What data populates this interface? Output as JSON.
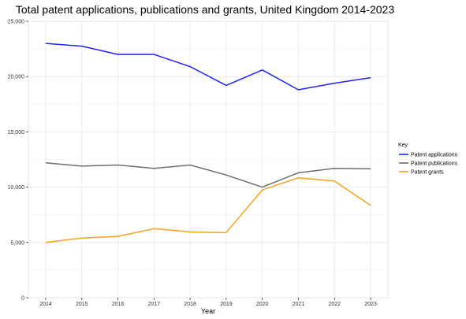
{
  "chart_data": {
    "type": "line",
    "title": "Total patent applications, publications and grants, United Kingdom 2014-2023",
    "xlabel": "Year",
    "ylabel": "",
    "x": [
      2014,
      2015,
      2016,
      2017,
      2018,
      2019,
      2020,
      2021,
      2022,
      2023
    ],
    "x_tick_labels": [
      "2014",
      "2015",
      "2016",
      "2017",
      "2018",
      "2019",
      "2020",
      "2021",
      "2022",
      "2023"
    ],
    "ylim": [
      0,
      25000
    ],
    "y_ticks": [
      0,
      5000,
      10000,
      15000,
      20000,
      25000
    ],
    "y_tick_labels": [
      "0",
      "5,000",
      "10,000",
      "15,000",
      "20,000",
      "25,000"
    ],
    "grid": true,
    "legend": {
      "title": "Key",
      "placement": "right"
    },
    "series": [
      {
        "name": "Patent applications",
        "color": "#1f1fff",
        "values": [
          23000,
          22750,
          22000,
          22000,
          20900,
          19200,
          20600,
          18800,
          19400,
          19900
        ]
      },
      {
        "name": "Patent publications",
        "color": "#6e6e6e",
        "values": [
          12200,
          11900,
          12000,
          11700,
          12000,
          11100,
          10000,
          11300,
          11700,
          11650
        ]
      },
      {
        "name": "Patent grants",
        "color": "#f7a11a",
        "values": [
          5000,
          5400,
          5550,
          6250,
          5950,
          5900,
          9750,
          10850,
          10550,
          8350
        ]
      }
    ]
  }
}
